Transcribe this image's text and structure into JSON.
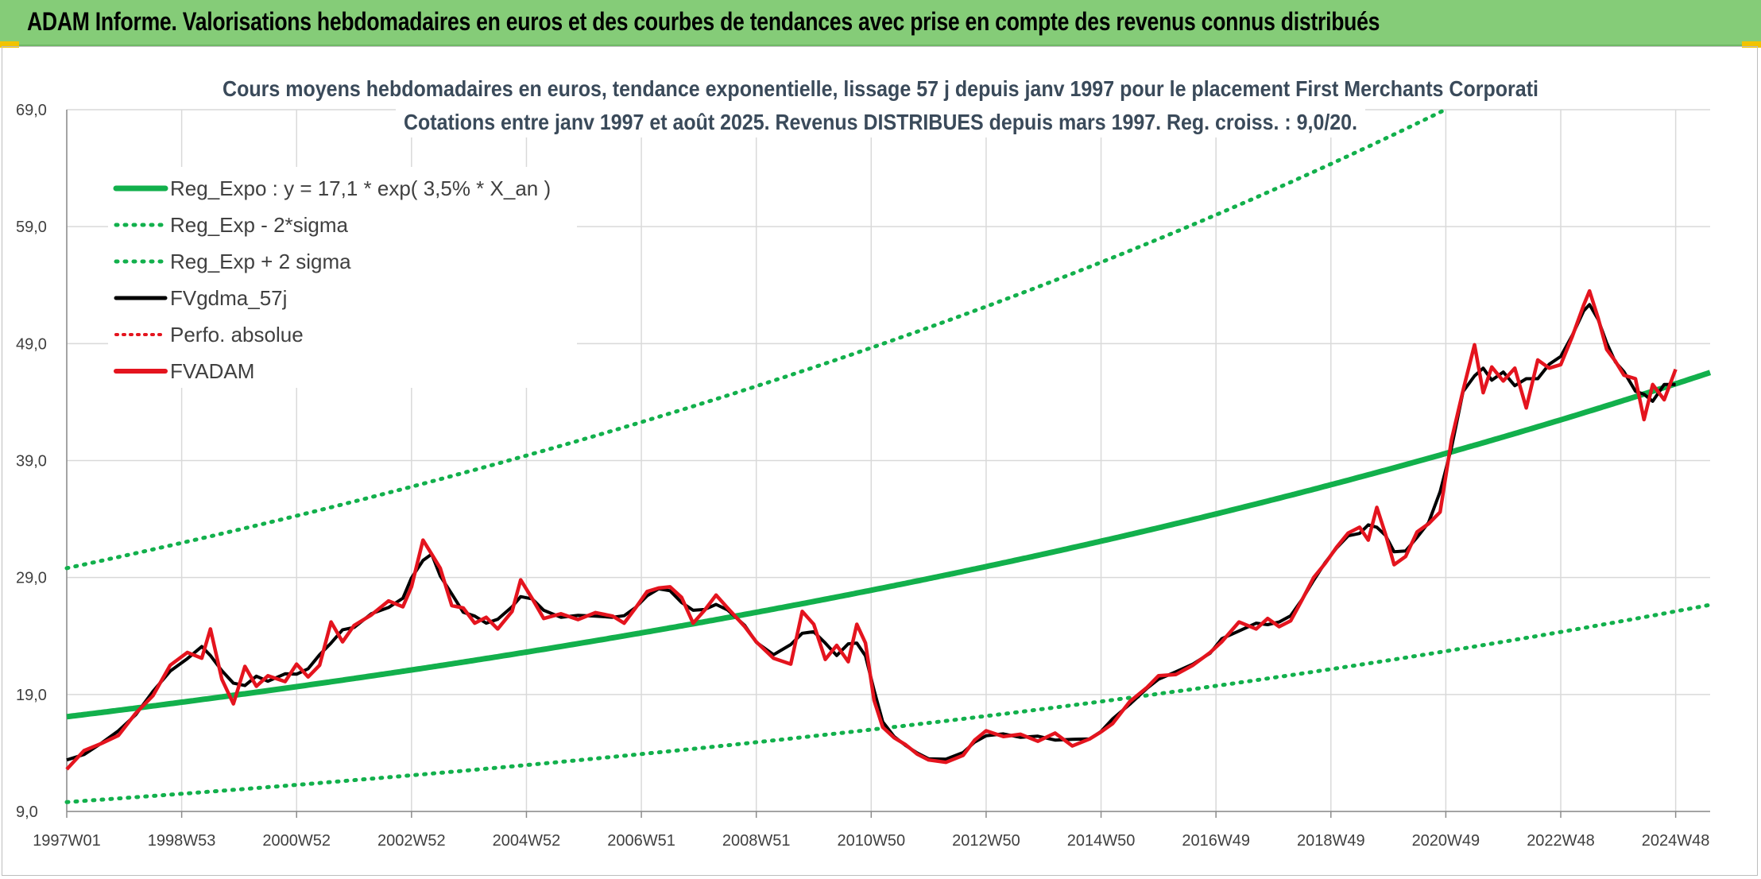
{
  "banner": {
    "title": "ADAM Informe. Valorisations hebdomadaires en euros et des courbes de tendances avec prise en compte des revenus connus distribués"
  },
  "colors": {
    "banner_bg": "#85cc78",
    "reg_expo": "#12b04c",
    "sigma": "#12b04c",
    "gdma": "#000000",
    "perfo": "#e4141e",
    "fvadam": "#e4141e"
  },
  "chart_data": {
    "type": "line",
    "title_lines": [
      "Cours moyens hebdomadaires en euros, tendance exponentielle, lissage 57 j depuis janv 1997 pour le placement First Merchants Corporati",
      "Cotations entre janv 1997 et août 2025. Revenus DISTRIBUES depuis mars 1997. Reg. croiss. : 9,0/20."
    ],
    "ylim": [
      9,
      69
    ],
    "y_ticks": [
      "69,0",
      "59,0",
      "49,0",
      "39,0",
      "29,0",
      "19,0",
      "9,0"
    ],
    "x_range": [
      1997.0,
      2025.6
    ],
    "x_ticks": [
      {
        "label": "1997W01",
        "year": 1997.0
      },
      {
        "label": "1998W53",
        "year": 1999.0
      },
      {
        "label": "2000W52",
        "year": 2001.0
      },
      {
        "label": "2002W52",
        "year": 2003.0
      },
      {
        "label": "2004W52",
        "year": 2005.0
      },
      {
        "label": "2006W51",
        "year": 2007.0
      },
      {
        "label": "2008W51",
        "year": 2009.0
      },
      {
        "label": "2010W50",
        "year": 2011.0
      },
      {
        "label": "2012W50",
        "year": 2013.0
      },
      {
        "label": "2014W50",
        "year": 2015.0
      },
      {
        "label": "2016W49",
        "year": 2017.0
      },
      {
        "label": "2018W49",
        "year": 2019.0
      },
      {
        "label": "2020W49",
        "year": 2021.0
      },
      {
        "label": "2022W48",
        "year": 2023.0
      },
      {
        "label": "2024W48",
        "year": 2025.0
      }
    ],
    "legend": [
      {
        "key": "reg_expo",
        "label": "Reg_Expo : y = 17,1 * exp( 3,5% *  X_an )",
        "style": "thick"
      },
      {
        "key": "reg_minus",
        "label": "Reg_Exp - 2*sigma",
        "style": "dotted-green"
      },
      {
        "key": "reg_plus",
        "label": "Reg_Exp + 2 sigma",
        "style": "dotted-green"
      },
      {
        "key": "gdma",
        "label": "FVgdma_57j",
        "style": "solid-black"
      },
      {
        "key": "perfo",
        "label": "Perfo. absolue",
        "style": "dotted-red"
      },
      {
        "key": "fvadam",
        "label": "FVADAM",
        "style": "solid-red"
      }
    ],
    "regression": {
      "a": 17.1,
      "rate": 0.035,
      "minus_2sigma_start": 9.8,
      "plus_2sigma_start": 29.8
    },
    "series": {
      "fvadam": [
        [
          1997.0,
          12.6
        ],
        [
          1997.3,
          14.2
        ],
        [
          1997.6,
          14.8
        ],
        [
          1997.9,
          15.5
        ],
        [
          1998.2,
          17.4
        ],
        [
          1998.5,
          18.9
        ],
        [
          1998.8,
          21.5
        ],
        [
          1999.1,
          22.6
        ],
        [
          1999.35,
          22.1
        ],
        [
          1999.5,
          24.6
        ],
        [
          1999.7,
          20.3
        ],
        [
          1999.9,
          18.2
        ],
        [
          2000.1,
          21.4
        ],
        [
          2000.3,
          19.7
        ],
        [
          2000.5,
          20.6
        ],
        [
          2000.8,
          20.1
        ],
        [
          2001.0,
          21.6
        ],
        [
          2001.2,
          20.5
        ],
        [
          2001.4,
          21.5
        ],
        [
          2001.6,
          25.2
        ],
        [
          2001.8,
          23.5
        ],
        [
          2002.0,
          24.9
        ],
        [
          2002.3,
          25.8
        ],
        [
          2002.6,
          27.0
        ],
        [
          2002.85,
          26.5
        ],
        [
          2003.0,
          28.2
        ],
        [
          2003.2,
          32.2
        ],
        [
          2003.35,
          31.0
        ],
        [
          2003.5,
          29.8
        ],
        [
          2003.7,
          26.6
        ],
        [
          2003.9,
          26.4
        ],
        [
          2004.1,
          25.1
        ],
        [
          2004.3,
          25.6
        ],
        [
          2004.5,
          24.6
        ],
        [
          2004.75,
          26.1
        ],
        [
          2004.9,
          28.8
        ],
        [
          2005.1,
          27.2
        ],
        [
          2005.3,
          25.5
        ],
        [
          2005.6,
          25.9
        ],
        [
          2005.9,
          25.4
        ],
        [
          2006.2,
          26.0
        ],
        [
          2006.5,
          25.7
        ],
        [
          2006.7,
          25.1
        ],
        [
          2006.9,
          26.4
        ],
        [
          2007.1,
          27.8
        ],
        [
          2007.3,
          28.1
        ],
        [
          2007.5,
          28.2
        ],
        [
          2007.7,
          27.3
        ],
        [
          2007.9,
          25.1
        ],
        [
          2008.1,
          26.2
        ],
        [
          2008.3,
          27.5
        ],
        [
          2008.5,
          26.4
        ],
        [
          2008.8,
          24.8
        ],
        [
          2009.0,
          23.5
        ],
        [
          2009.3,
          22.1
        ],
        [
          2009.6,
          21.6
        ],
        [
          2009.8,
          26.1
        ],
        [
          2010.0,
          25.0
        ],
        [
          2010.2,
          22.0
        ],
        [
          2010.4,
          23.2
        ],
        [
          2010.6,
          21.8
        ],
        [
          2010.75,
          25.0
        ],
        [
          2010.9,
          23.4
        ],
        [
          2011.05,
          18.5
        ],
        [
          2011.2,
          16.2
        ],
        [
          2011.4,
          15.3
        ],
        [
          2011.6,
          14.7
        ],
        [
          2011.8,
          13.9
        ],
        [
          2012.0,
          13.4
        ],
        [
          2012.3,
          13.2
        ],
        [
          2012.6,
          13.8
        ],
        [
          2012.8,
          15.1
        ],
        [
          2013.0,
          15.9
        ],
        [
          2013.3,
          15.4
        ],
        [
          2013.6,
          15.6
        ],
        [
          2013.9,
          15.0
        ],
        [
          2014.2,
          15.7
        ],
        [
          2014.5,
          14.6
        ],
        [
          2014.8,
          15.2
        ],
        [
          2015.0,
          15.8
        ],
        [
          2015.2,
          16.5
        ],
        [
          2015.5,
          18.4
        ],
        [
          2015.8,
          19.6
        ],
        [
          2016.0,
          20.6
        ],
        [
          2016.3,
          20.7
        ],
        [
          2016.6,
          21.5
        ],
        [
          2016.9,
          22.6
        ],
        [
          2017.1,
          23.5
        ],
        [
          2017.4,
          25.2
        ],
        [
          2017.7,
          24.6
        ],
        [
          2017.9,
          25.5
        ],
        [
          2018.1,
          24.8
        ],
        [
          2018.3,
          25.3
        ],
        [
          2018.5,
          27.1
        ],
        [
          2018.7,
          29.0
        ],
        [
          2018.9,
          30.2
        ],
        [
          2019.1,
          31.6
        ],
        [
          2019.3,
          32.8
        ],
        [
          2019.5,
          33.3
        ],
        [
          2019.65,
          32.2
        ],
        [
          2019.8,
          35.0
        ],
        [
          2019.95,
          32.7
        ],
        [
          2020.1,
          30.1
        ],
        [
          2020.3,
          30.8
        ],
        [
          2020.5,
          32.9
        ],
        [
          2020.7,
          33.6
        ],
        [
          2020.9,
          34.6
        ],
        [
          2021.1,
          40.8
        ],
        [
          2021.3,
          45.0
        ],
        [
          2021.5,
          48.9
        ],
        [
          2021.65,
          44.8
        ],
        [
          2021.8,
          47.0
        ],
        [
          2022.0,
          45.8
        ],
        [
          2022.2,
          46.9
        ],
        [
          2022.4,
          43.5
        ],
        [
          2022.6,
          47.6
        ],
        [
          2022.8,
          46.9
        ],
        [
          2023.0,
          47.2
        ],
        [
          2023.2,
          49.6
        ],
        [
          2023.4,
          52.3
        ],
        [
          2023.5,
          53.5
        ],
        [
          2023.65,
          51.2
        ],
        [
          2023.8,
          48.5
        ],
        [
          2023.95,
          47.5
        ],
        [
          2024.1,
          46.3
        ],
        [
          2024.3,
          46.0
        ],
        [
          2024.45,
          42.5
        ],
        [
          2024.6,
          45.5
        ],
        [
          2024.8,
          44.2
        ],
        [
          2025.0,
          46.8
        ]
      ]
    }
  }
}
